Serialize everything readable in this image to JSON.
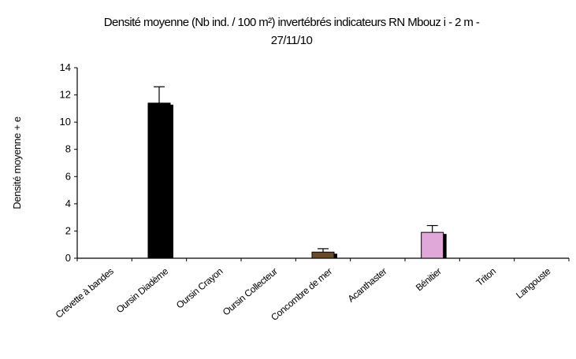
{
  "chart_data": {
    "type": "bar",
    "title_lines": [
      "Densité moyenne (Nb ind. / 100 m²) invertébrés indicateurs RN Mbouz i - 2 m -",
      "27/11/10"
    ],
    "ylabel": "Densité moyenne + e",
    "xlabel": "",
    "ylim": [
      0,
      14
    ],
    "yticks": [
      "0",
      "2",
      "4",
      "6",
      "8",
      "10",
      "12",
      "14"
    ],
    "categories": [
      "Crevette à bandes",
      "Oursin Diadème",
      "Oursin Crayon",
      "Oursin Collecteur",
      "Concombre de mer",
      "Acanthaster",
      "Bénitier",
      "Triton",
      "Langouste"
    ],
    "values": [
      0,
      11.4,
      0,
      0,
      0.45,
      0,
      1.9,
      0,
      0
    ],
    "errors": [
      0,
      1.2,
      0,
      0,
      0.25,
      0,
      0.5,
      0,
      0
    ],
    "bar_colors": [
      "#000000",
      "#000000",
      "#000000",
      "#000000",
      "#6b4a2a",
      "#000000",
      "#e0a8d8",
      "#000000",
      "#000000"
    ],
    "legend": "none",
    "grid": false
  }
}
